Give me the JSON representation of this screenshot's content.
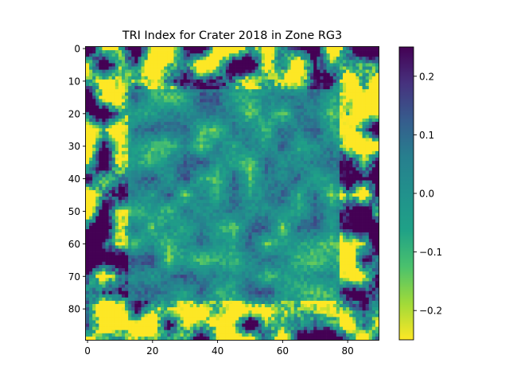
{
  "chart_data": {
    "type": "heatmap",
    "title": "TRI Index for Crater 2018 in Zone RG3",
    "xlabel": "",
    "ylabel": "",
    "grid_size": [
      90,
      90
    ],
    "x_ticks": [
      "0",
      "20",
      "40",
      "60",
      "80"
    ],
    "y_ticks": [
      "0",
      "10",
      "20",
      "30",
      "40",
      "50",
      "60",
      "70",
      "80"
    ],
    "x_tick_values": [
      0,
      20,
      40,
      60,
      80
    ],
    "y_tick_values": [
      0,
      10,
      20,
      30,
      40,
      50,
      60,
      70,
      80
    ],
    "colorbar": {
      "colormap": "viridis_r",
      "range": [
        -0.25,
        0.25
      ],
      "ticks": [
        "0.2",
        "0.1",
        "0.0",
        "−0.1",
        "−0.2"
      ],
      "tick_values": [
        0.2,
        0.1,
        0.0,
        -0.1,
        -0.2
      ]
    },
    "colors": {
      "low": "#fde725",
      "mid": "#21918c",
      "high": "#440154"
    },
    "grid": false,
    "seed": 2018
  }
}
